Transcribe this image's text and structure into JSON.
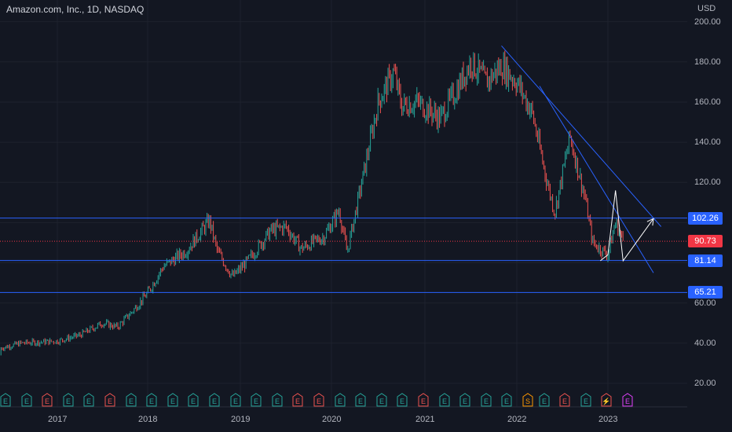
{
  "header": {
    "symbol_title": "Amazon.com, Inc., 1D, NASDAQ",
    "currency": "USD"
  },
  "chart_data": {
    "type": "line",
    "title": "Amazon.com, Inc., 1D, NASDAQ",
    "ylabel": "USD",
    "ylim": [
      10,
      205
    ],
    "y_ticks": [
      "20.00",
      "40.00",
      "60.00",
      "80.00",
      "100.00",
      "120.00",
      "140.00",
      "160.00",
      "180.00",
      "200.00"
    ],
    "x_ticks": [
      "2017",
      "2018",
      "2019",
      "2020",
      "2021",
      "2022",
      "2023"
    ],
    "grid": true,
    "series": [
      {
        "x": [
          "2016-06",
          "2016-10",
          "2017-01",
          "2017-04",
          "2017-07",
          "2017-09",
          "2017-11",
          "2018-01",
          "2018-03",
          "2018-06",
          "2018-09",
          "2018-10",
          "2018-12",
          "2019-02",
          "2019-05",
          "2019-07",
          "2019-09",
          "2019-12",
          "2020-02",
          "2020-03",
          "2020-05",
          "2020-07",
          "2020-09",
          "2020-10",
          "2020-12",
          "2021-03",
          "2021-05",
          "2021-07",
          "2021-09",
          "2021-11",
          "2022-01",
          "2022-03",
          "2022-05",
          "2022-06",
          "2022-08",
          "2022-10",
          "2022-11",
          "2023-01",
          "2023-02",
          "2023-03"
        ],
        "values": [
          34,
          40,
          41,
          44,
          50,
          48,
          56,
          65,
          78,
          86,
          101,
          86,
          73,
          81,
          96,
          98,
          87,
          93,
          106,
          85,
          122,
          160,
          175,
          158,
          160,
          152,
          165,
          180,
          170,
          178,
          170,
          155,
          120,
          105,
          143,
          112,
          90,
          84,
          100,
          91
        ]
      }
    ],
    "levels": [
      {
        "label": "102.26",
        "value": 102.26,
        "color": "#2962ff"
      },
      {
        "label": "81.14",
        "value": 81.14,
        "color": "#2962ff"
      },
      {
        "label": "65.21",
        "value": 65.21,
        "color": "#2962ff"
      }
    ],
    "last_price": {
      "label": "90.73",
      "value": 90.73,
      "color": "#f23645"
    },
    "trendlines": [
      {
        "x1": "2021-11",
        "y1": 188,
        "x2": "2023-08",
        "y2": 98
      },
      {
        "x1": "2022-04",
        "y1": 168,
        "x2": "2023-07",
        "y2": 75
      }
    ],
    "projection": {
      "x": [
        "2022-12",
        "2023-01",
        "2023-02",
        "2023-03",
        "2023-07"
      ],
      "values": [
        81,
        84,
        116,
        81,
        102
      ],
      "color": "#ffffff"
    },
    "earnings_markers": [
      "E",
      "E",
      "E",
      "E",
      "E",
      "E",
      "E",
      "E",
      "E",
      "E",
      "E",
      "E",
      "E",
      "E",
      "E",
      "E",
      "E",
      "E",
      "E",
      "E",
      "E",
      "E",
      "E",
      "E",
      "E",
      "S",
      "E",
      "E",
      "E",
      "⚡",
      "E"
    ]
  },
  "colors": {
    "background": "#131722",
    "grid": "#1e222d",
    "up": "#26a69a",
    "down": "#ef5350",
    "level": "#2962ff",
    "last_price": "#f23645",
    "earnings_up": "#26a69a",
    "earnings_down": "#ef5350",
    "split": "#ff9800",
    "dividend": "#e040fb"
  }
}
